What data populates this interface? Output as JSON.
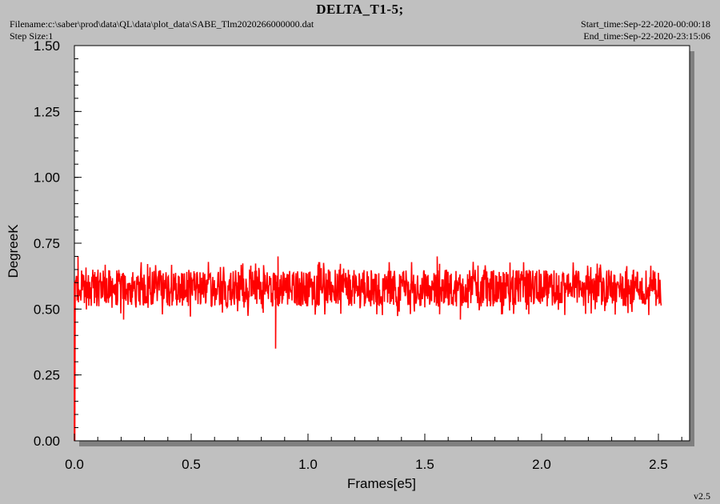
{
  "header": {
    "title": "DELTA_T1-5;",
    "filename": "Filename:c:\\saber\\prod\\data\\QL\\data\\plot_data\\SABE_Tlm2020266000000.dat",
    "step_size": "Step Size:1",
    "start_time": "Start_time:Sep-22-2020-00:00:18",
    "end_time": "End_time:Sep-22-2020-23:15:06",
    "version": "v2.5"
  },
  "colors": {
    "background": "#c0c0c0",
    "plot_area": "#ffffff",
    "series": "#ff0000",
    "shadow": "#808080"
  },
  "chart_data": {
    "type": "line",
    "title": "DELTA_T1-5;",
    "xlabel": "Frames[e5]",
    "ylabel": "DegreeK",
    "xlim": [
      0,
      2.62
    ],
    "ylim": [
      0,
      1.5
    ],
    "x_ticks": [
      "0.0",
      "0.5",
      "1.0",
      "1.5",
      "2.0",
      "2.5"
    ],
    "y_ticks": [
      "0.00",
      "0.25",
      "0.50",
      "0.75",
      "1.00",
      "1.25",
      "1.50"
    ],
    "grid": false,
    "series": [
      {
        "color": "#ff0000",
        "x_range": [
          0,
          2.51
        ],
        "typical_band": [
          0.51,
          0.65
        ],
        "mean": 0.58,
        "spikes": [
          {
            "x": 0.0,
            "y": 0.0
          },
          {
            "x": 0.015,
            "y": 0.7
          },
          {
            "x": 0.86,
            "y": 0.35
          },
          {
            "x": 0.87,
            "y": 0.7
          },
          {
            "x": 1.55,
            "y": 0.7
          },
          {
            "x": 1.65,
            "y": 0.46
          },
          {
            "x": 1.56,
            "y": 0.48
          },
          {
            "x": 0.21,
            "y": 0.46
          }
        ]
      }
    ]
  }
}
